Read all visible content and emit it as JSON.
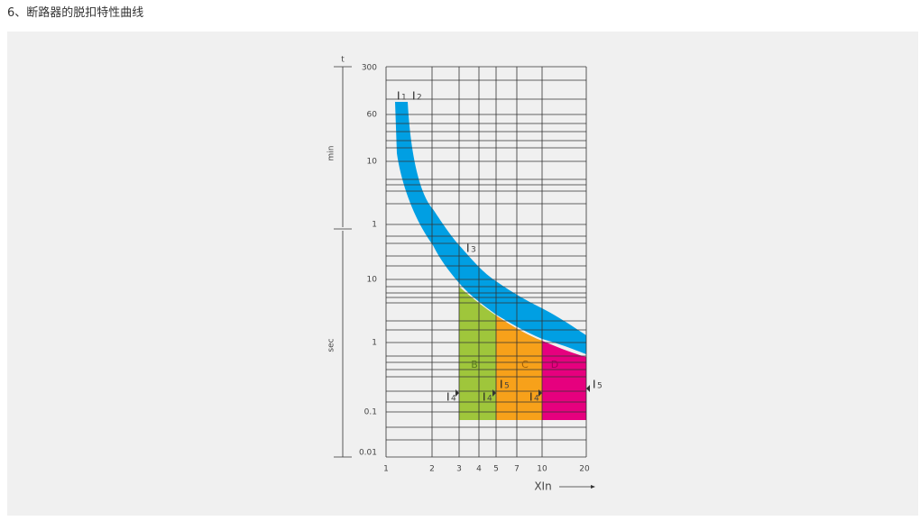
{
  "header": {
    "title": "6、断路器的脱扣特性曲线"
  },
  "diagram": {
    "t_label": "t",
    "min_label": "min",
    "sec_label": "sec",
    "x_axis_label": "XIn",
    "left_labels": [
      "300",
      "60",
      "10",
      "1",
      "10",
      "1",
      "0.1",
      "0.01"
    ],
    "bottom_labels": [
      "1",
      "2",
      "3",
      "4",
      "5",
      "7",
      "10",
      "20"
    ],
    "zones": [
      "B",
      "C",
      "D"
    ],
    "markers": [
      {
        "letter": "I",
        "index": "1"
      },
      {
        "letter": "I",
        "index": "2"
      },
      {
        "letter": "I",
        "index": "3"
      },
      {
        "letter": "I",
        "index": "4"
      },
      {
        "letter": "I",
        "index": "4"
      },
      {
        "letter": "I",
        "index": "5"
      },
      {
        "letter": "I",
        "index": "4"
      },
      {
        "letter": "I",
        "index": "5"
      }
    ]
  }
}
